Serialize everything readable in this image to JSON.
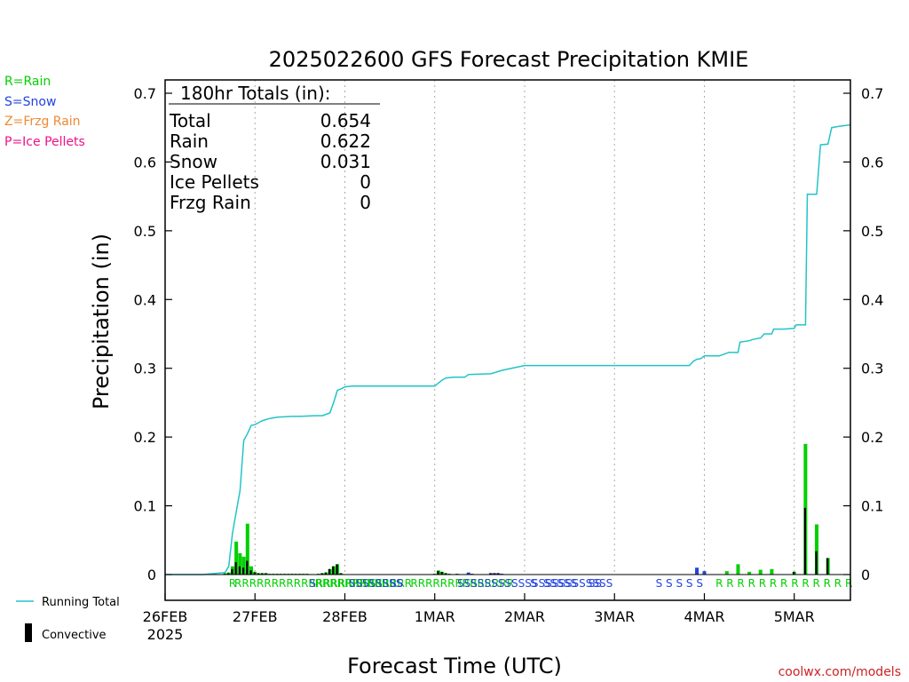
{
  "chart_data": {
    "type": "bar",
    "title": "2025022600 GFS Forecast Precipitation KMIE",
    "xlabel": "Forecast Time (UTC)",
    "ylabel": "Precipitation (in)",
    "ylim": [
      0,
      0.72
    ],
    "xlim_hours": [
      0,
      183
    ],
    "y_ticks": [
      0,
      0.1,
      0.2,
      0.3,
      0.4,
      0.5,
      0.6,
      0.7
    ],
    "y_tick_labels": [
      "0",
      "0.1",
      "0.2",
      "0.3",
      "0.4",
      "0.5",
      "0.6",
      "0.7"
    ],
    "x_ticks": [
      {
        "hour": 0,
        "label": "26FEB",
        "sublabel": "2025"
      },
      {
        "hour": 24,
        "label": "27FEB"
      },
      {
        "hour": 48,
        "label": "28FEB"
      },
      {
        "hour": 72,
        "label": "1MAR"
      },
      {
        "hour": 96,
        "label": "2MAR"
      },
      {
        "hour": 120,
        "label": "3MAR"
      },
      {
        "hour": 144,
        "label": "4MAR"
      },
      {
        "hour": 168,
        "label": "5MAR"
      }
    ],
    "grid": "vertical dotted at day boundaries",
    "colors": {
      "rain": "#00d000",
      "snow": "#2244dd",
      "frzg_rain": "#ee8833",
      "ice_pellets": "#ee1188",
      "running_total": "#22c4c8",
      "convective": "#000000",
      "credit": "#cc2222"
    },
    "legend_types": [
      {
        "code": "R",
        "text": "R=Rain",
        "key": "rain"
      },
      {
        "code": "S",
        "text": "S=Snow",
        "key": "snow"
      },
      {
        "code": "Z",
        "text": "Z=Frzg Rain",
        "key": "frzg_rain"
      },
      {
        "code": "P",
        "text": "P=Ice Pellets",
        "key": "ice_pellets"
      }
    ],
    "legend_lines": {
      "running_total": "Running Total",
      "convective": "Convective"
    },
    "totals": {
      "heading": "180hr Totals (in):",
      "rows": [
        {
          "label": "Total",
          "value": "0.654"
        },
        {
          "label": "Rain",
          "value": "0.622"
        },
        {
          "label": "Snow",
          "value": "0.031"
        },
        {
          "label": "Ice Pellets",
          "value": "0"
        },
        {
          "label": "Frzg Rain",
          "value": "0"
        }
      ]
    },
    "credit": "coolwx.com/models",
    "bars": [
      {
        "hour": 16,
        "type": "R",
        "value": 0.002,
        "conv": 0.001
      },
      {
        "hour": 17,
        "type": "R",
        "value": 0.003,
        "conv": 0.002
      },
      {
        "hour": 18,
        "type": "R",
        "value": 0.012,
        "conv": 0.008
      },
      {
        "hour": 19,
        "type": "R",
        "value": 0.048,
        "conv": 0.018
      },
      {
        "hour": 20,
        "type": "R",
        "value": 0.031,
        "conv": 0.012
      },
      {
        "hour": 21,
        "type": "R",
        "value": 0.026,
        "conv": 0.01
      },
      {
        "hour": 22,
        "type": "R",
        "value": 0.074,
        "conv": 0.02
      },
      {
        "hour": 23,
        "type": "R",
        "value": 0.012,
        "conv": 0.006
      },
      {
        "hour": 24,
        "type": "R",
        "value": 0.004,
        "conv": 0.003
      },
      {
        "hour": 25,
        "type": "R",
        "value": 0.002,
        "conv": 0.002
      },
      {
        "hour": 26,
        "type": "R",
        "value": 0.002,
        "conv": 0.002
      },
      {
        "hour": 27,
        "type": "R",
        "value": 0.002,
        "conv": 0.002
      },
      {
        "hour": 28,
        "type": "R",
        "value": 0.001,
        "conv": 0.001
      },
      {
        "hour": 29,
        "type": "R",
        "value": 0.001,
        "conv": 0.001
      },
      {
        "hour": 30,
        "type": "R",
        "value": 0.001,
        "conv": 0.001
      },
      {
        "hour": 31,
        "type": "R",
        "value": 0.001,
        "conv": 0.001
      },
      {
        "hour": 32,
        "type": "R",
        "value": 0.001,
        "conv": 0.001
      },
      {
        "hour": 33,
        "type": "R",
        "value": 0.001,
        "conv": 0.001
      },
      {
        "hour": 34,
        "type": "R",
        "value": 0.001,
        "conv": 0.001
      },
      {
        "hour": 35,
        "type": "R",
        "value": 0.001,
        "conv": 0.001
      },
      {
        "hour": 36,
        "type": "R",
        "value": 0.001,
        "conv": 0.001
      },
      {
        "hour": 37,
        "type": "R",
        "value": 0.001,
        "conv": 0.001
      },
      {
        "hour": 38,
        "type": "R",
        "value": 0.001,
        "conv": 0.001
      },
      {
        "hour": 41,
        "type": "R",
        "value": 0.001,
        "conv": 0.001
      },
      {
        "hour": 42,
        "type": "R",
        "value": 0.002,
        "conv": 0.002
      },
      {
        "hour": 43,
        "type": "R",
        "value": 0.003,
        "conv": 0.003
      },
      {
        "hour": 44,
        "type": "R",
        "value": 0.008,
        "conv": 0.008
      },
      {
        "hour": 45,
        "type": "R",
        "value": 0.012,
        "conv": 0.012
      },
      {
        "hour": 46,
        "type": "R",
        "value": 0.015,
        "conv": 0.015
      },
      {
        "hour": 47,
        "type": "R",
        "value": 0.002,
        "conv": 0.002
      },
      {
        "hour": 72,
        "type": "R",
        "value": 0.001,
        "conv": 0.001
      },
      {
        "hour": 73,
        "type": "R",
        "value": 0.006,
        "conv": 0.005
      },
      {
        "hour": 74,
        "type": "R",
        "value": 0.004,
        "conv": 0.004
      },
      {
        "hour": 75,
        "type": "R",
        "value": 0.002,
        "conv": 0.002
      },
      {
        "hour": 76,
        "type": "R",
        "value": 0.001,
        "conv": 0.001
      },
      {
        "hour": 78,
        "type": "S",
        "value": 0.001,
        "conv": 0.001
      },
      {
        "hour": 81,
        "type": "S",
        "value": 0.003,
        "conv": 0.0
      },
      {
        "hour": 82,
        "type": "S",
        "value": 0.001,
        "conv": 0.001
      },
      {
        "hour": 87,
        "type": "S",
        "value": 0.002,
        "conv": 0.002
      },
      {
        "hour": 88,
        "type": "S",
        "value": 0.002,
        "conv": 0.002
      },
      {
        "hour": 89,
        "type": "S",
        "value": 0.002,
        "conv": 0.002
      },
      {
        "hour": 90,
        "type": "S",
        "value": 0.001,
        "conv": 0.001
      },
      {
        "hour": 142,
        "type": "S",
        "value": 0.01,
        "conv": 0.0
      },
      {
        "hour": 144,
        "type": "S",
        "value": 0.005,
        "conv": 0.0
      },
      {
        "hour": 150,
        "type": "R",
        "value": 0.005,
        "conv": 0.0
      },
      {
        "hour": 153,
        "type": "R",
        "value": 0.015,
        "conv": 0.0
      },
      {
        "hour": 156,
        "type": "R",
        "value": 0.004,
        "conv": 0.0
      },
      {
        "hour": 159,
        "type": "R",
        "value": 0.007,
        "conv": 0.0
      },
      {
        "hour": 162,
        "type": "R",
        "value": 0.008,
        "conv": 0.0
      },
      {
        "hour": 168,
        "type": "R",
        "value": 0.004,
        "conv": 0.004
      },
      {
        "hour": 171,
        "type": "R",
        "value": 0.19,
        "conv": 0.097
      },
      {
        "hour": 174,
        "type": "R",
        "value": 0.073,
        "conv": 0.034
      },
      {
        "hour": 177,
        "type": "R",
        "value": 0.024,
        "conv": 0.024
      }
    ],
    "running_total": {
      "hours": [
        0,
        10,
        12,
        16,
        17,
        18,
        19,
        20,
        21,
        22,
        23,
        24,
        25,
        26,
        28,
        30,
        34,
        36,
        40,
        42,
        44,
        45,
        46,
        47,
        48,
        50,
        72,
        74,
        75,
        77,
        80,
        81,
        87,
        90,
        96,
        120,
        138,
        140,
        141,
        142,
        143,
        144,
        147,
        148,
        150,
        150.5,
        153,
        153.5,
        156,
        157,
        159,
        160,
        162,
        162.5,
        165,
        168,
        168.5,
        171,
        171.5,
        174,
        175,
        177,
        178,
        180,
        183
      ],
      "values": [
        0,
        0,
        0.001,
        0.003,
        0.012,
        0.06,
        0.092,
        0.122,
        0.195,
        0.205,
        0.217,
        0.218,
        0.221,
        0.224,
        0.227,
        0.229,
        0.23,
        0.23,
        0.231,
        0.231,
        0.235,
        0.25,
        0.268,
        0.27,
        0.273,
        0.274,
        0.274,
        0.283,
        0.286,
        0.287,
        0.287,
        0.291,
        0.292,
        0.297,
        0.304,
        0.304,
        0.304,
        0.304,
        0.31,
        0.313,
        0.314,
        0.318,
        0.318,
        0.318,
        0.322,
        0.323,
        0.323,
        0.338,
        0.34,
        0.342,
        0.344,
        0.35,
        0.35,
        0.357,
        0.357,
        0.358,
        0.363,
        0.363,
        0.553,
        0.553,
        0.625,
        0.626,
        0.65,
        0.652,
        0.654
      ]
    },
    "type_strip": [
      {
        "hour": 17,
        "code": "R"
      },
      {
        "hour": 18.5,
        "code": "RRRRRRRRRRRRRRRRRRRRRRRR"
      },
      {
        "hour": 38.5,
        "code": "S"
      },
      {
        "hour": 40,
        "code": "RRRRRRRRRRR"
      },
      {
        "hour": 49,
        "code": "SSSSSSSS"
      },
      {
        "hour": 60,
        "code": "SS"
      },
      {
        "hour": 65.5,
        "code": "R"
      },
      {
        "hour": 67.5,
        "code": "RRRRRRRRRRRRR"
      },
      {
        "hour": 78,
        "code": "SSSSSSSSSSSSSSSSSSSSSSS"
      },
      {
        "hour": 97.5,
        "code": "S"
      },
      {
        "hour": 101,
        "code": "SSSSS"
      },
      {
        "hour": 113,
        "code": "SS"
      },
      {
        "hour": 131,
        "code": "S S S S S"
      },
      {
        "hour": 147,
        "code": "R R R R R R R R R R R R R"
      }
    ]
  }
}
